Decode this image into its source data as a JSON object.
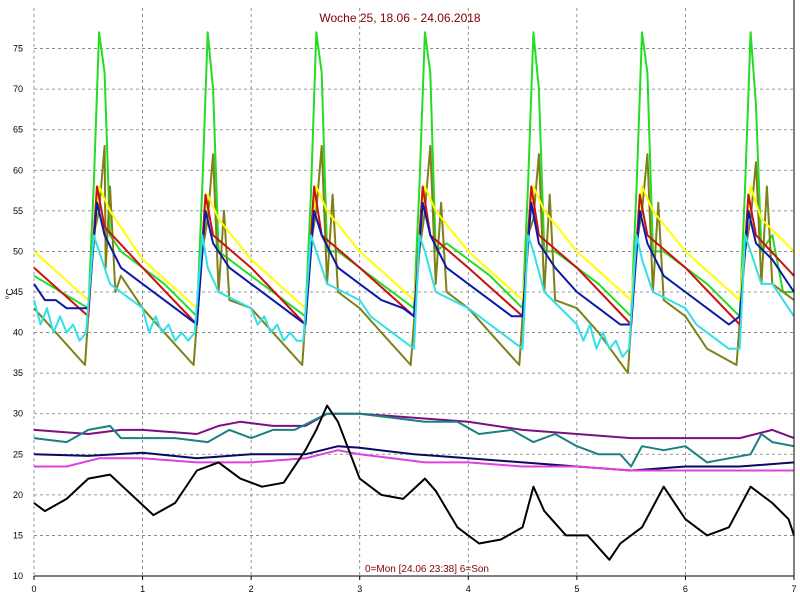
{
  "chart_data": {
    "type": "line",
    "title": "Woche 25, 18.06 - 24.06.2018",
    "ylabel": "°C",
    "footer": "0=Mon [24.06 23:38] 6=Son",
    "xlim": [
      0,
      7
    ],
    "ylim": [
      10,
      80
    ],
    "xticks": [
      "0",
      "1",
      "2",
      "3",
      "4",
      "5",
      "6",
      "7"
    ],
    "yticks": [
      "10",
      "15",
      "20",
      "25",
      "30",
      "35",
      "40",
      "45",
      "50",
      "55",
      "60",
      "65",
      "70",
      "75"
    ],
    "grid": true,
    "colors": {
      "green": "#22dd22",
      "olive": "#808018",
      "yellow": "#ffff00",
      "red": "#cc1111",
      "blue": "#0a1aa8",
      "cyan": "#33e0e8",
      "purple": "#7a1080",
      "teal": "#1a8080",
      "navy": "#0a0a60",
      "magenta": "#e040e0",
      "black": "#000000"
    },
    "series": [
      {
        "color": "green",
        "x": [
          0,
          0.5,
          0.55,
          0.6,
          0.65,
          0.7,
          0.8,
          1,
          1.2,
          1.5,
          1.55,
          1.6,
          1.65,
          1.7,
          1.8,
          2,
          2.2,
          2.5,
          2.55,
          2.6,
          2.65,
          2.7,
          2.8,
          3,
          3.2,
          3.5,
          3.55,
          3.6,
          3.65,
          3.7,
          3.8,
          4,
          4.2,
          4.5,
          4.55,
          4.6,
          4.65,
          4.7,
          4.8,
          5,
          5.2,
          5.5,
          5.55,
          5.6,
          5.65,
          5.7,
          5.8,
          6,
          6.2,
          6.5,
          6.55,
          6.6,
          6.65,
          6.7,
          6.8,
          6.9,
          7
        ],
        "y": [
          47,
          43,
          58,
          77,
          72,
          52,
          50,
          48,
          46,
          42,
          58,
          77,
          70,
          50,
          49,
          47,
          45,
          42,
          57,
          77,
          72,
          50,
          50,
          48,
          46,
          43,
          58,
          77,
          72,
          50,
          51,
          49,
          47,
          43,
          58,
          77,
          70,
          50,
          50,
          48,
          46,
          42,
          58,
          77,
          72,
          50,
          50,
          48,
          46,
          42,
          58,
          77,
          68,
          50,
          52,
          45,
          45
        ]
      },
      {
        "color": "olive",
        "x": [
          0,
          0.47,
          0.55,
          0.6,
          0.65,
          0.66,
          0.7,
          0.75,
          0.8,
          1,
          1.2,
          1.47,
          1.55,
          1.6,
          1.65,
          1.7,
          1.75,
          1.8,
          2,
          2.2,
          2.47,
          2.55,
          2.6,
          2.65,
          2.7,
          2.75,
          2.8,
          3,
          3.2,
          3.47,
          3.55,
          3.6,
          3.65,
          3.7,
          3.75,
          3.8,
          4,
          4.2,
          4.47,
          4.55,
          4.6,
          4.65,
          4.7,
          4.75,
          4.8,
          5,
          5.2,
          5.47,
          5.55,
          5.6,
          5.65,
          5.7,
          5.75,
          5.8,
          6,
          6.2,
          6.47,
          6.55,
          6.6,
          6.65,
          6.7,
          6.75,
          6.8,
          7
        ],
        "y": [
          43,
          36,
          52,
          55,
          63,
          48,
          58,
          45,
          47,
          43,
          40,
          36,
          50,
          54,
          62,
          45,
          55,
          44,
          43,
          40,
          36,
          51,
          55,
          63,
          46,
          57,
          45,
          43,
          40,
          36,
          50,
          55,
          63,
          46,
          56,
          45,
          43,
          40,
          36,
          52,
          54,
          62,
          45,
          57,
          44,
          43,
          40,
          35,
          51,
          55,
          62,
          45,
          56,
          44,
          42,
          38,
          36,
          50,
          54,
          61,
          46,
          58,
          46,
          44
        ]
      },
      {
        "color": "yellow",
        "x": [
          0,
          0.5,
          0.6,
          0.7,
          1,
          1.5,
          1.6,
          1.7,
          2,
          2.5,
          2.6,
          2.7,
          3,
          3.5,
          3.6,
          3.7,
          4,
          4.5,
          4.6,
          4.7,
          5,
          5.5,
          5.6,
          5.7,
          6,
          6.5,
          6.6,
          6.7,
          7
        ],
        "y": [
          50,
          44,
          58,
          55,
          49,
          43,
          57,
          54,
          49,
          43,
          58,
          55,
          50,
          44,
          58,
          55,
          50,
          44,
          58,
          55,
          50,
          44,
          58,
          55,
          50,
          44,
          58,
          54,
          50
        ]
      },
      {
        "color": "red",
        "x": [
          0,
          0.5,
          0.58,
          0.65,
          1,
          1.5,
          1.58,
          1.65,
          2,
          2.5,
          2.58,
          2.65,
          3,
          3.5,
          3.58,
          3.65,
          4,
          4.5,
          4.58,
          4.65,
          5,
          5.5,
          5.58,
          5.65,
          6,
          6.5,
          6.58,
          6.65,
          7
        ],
        "y": [
          48,
          42,
          58,
          53,
          48,
          41,
          57,
          52,
          48,
          41,
          58,
          52,
          48,
          42,
          58,
          52,
          48,
          42,
          58,
          52,
          48,
          41,
          57,
          52,
          48,
          41,
          57,
          52,
          47
        ]
      },
      {
        "color": "blue",
        "x": [
          0,
          0.1,
          0.2,
          0.3,
          0.4,
          0.5,
          0.58,
          0.65,
          0.8,
          1,
          1.2,
          1.4,
          1.5,
          1.58,
          1.65,
          1.8,
          2,
          2.2,
          2.4,
          2.5,
          2.58,
          2.65,
          2.8,
          3,
          3.2,
          3.4,
          3.5,
          3.58,
          3.65,
          3.8,
          4,
          4.2,
          4.4,
          4.5,
          4.58,
          4.65,
          4.8,
          5,
          5.2,
          5.4,
          5.5,
          5.58,
          5.65,
          5.8,
          6,
          6.2,
          6.4,
          6.5,
          6.58,
          6.65,
          6.8,
          7
        ],
        "y": [
          46,
          44,
          44,
          43,
          43,
          43,
          56,
          52,
          48,
          46,
          44,
          42,
          41,
          55,
          51,
          48,
          46,
          44,
          42,
          41,
          55,
          52,
          48,
          46,
          44,
          43,
          42,
          56,
          52,
          48,
          46,
          44,
          42,
          42,
          56,
          51,
          48,
          45,
          43,
          41,
          41,
          55,
          51,
          47,
          45,
          43,
          41,
          42,
          55,
          51,
          49,
          45
        ]
      },
      {
        "color": "cyan",
        "x": [
          0,
          0.06,
          0.12,
          0.18,
          0.24,
          0.3,
          0.36,
          0.42,
          0.48,
          0.55,
          0.6,
          0.7,
          1,
          1.06,
          1.12,
          1.18,
          1.24,
          1.3,
          1.36,
          1.42,
          1.48,
          1.55,
          1.6,
          1.7,
          2,
          2.06,
          2.12,
          2.18,
          2.24,
          2.3,
          2.36,
          2.42,
          2.48,
          2.55,
          2.6,
          2.7,
          3,
          3.1,
          3.2,
          3.3,
          3.4,
          3.5,
          3.55,
          3.6,
          3.7,
          4,
          4.1,
          4.2,
          4.3,
          4.4,
          4.5,
          4.55,
          4.6,
          4.7,
          5,
          5.06,
          5.12,
          5.18,
          5.24,
          5.3,
          5.36,
          5.42,
          5.48,
          5.55,
          5.6,
          5.7,
          6,
          6.1,
          6.2,
          6.3,
          6.4,
          6.5,
          6.55,
          6.6,
          6.7,
          6.8,
          7
        ],
        "y": [
          44,
          41,
          43,
          40,
          42,
          40,
          41,
          39,
          40,
          52,
          50,
          46,
          43,
          40,
          42,
          40,
          41,
          39,
          40,
          39,
          40,
          52,
          48,
          45,
          43,
          41,
          42,
          40,
          41,
          39,
          40,
          39,
          39,
          52,
          50,
          46,
          44,
          42,
          41,
          40,
          39,
          38,
          52,
          50,
          45,
          43,
          42,
          41,
          40,
          39,
          38,
          52,
          50,
          45,
          41,
          39,
          41,
          38,
          40,
          38,
          39,
          37,
          38,
          52,
          49,
          45,
          43,
          41,
          40,
          39,
          38,
          38,
          52,
          50,
          46,
          46,
          42
        ]
      },
      {
        "color": "purple",
        "x": [
          0,
          0.5,
          0.8,
          1,
          1.5,
          1.7,
          1.9,
          2.2,
          2.5,
          2.7,
          3,
          3.5,
          4,
          4.5,
          5,
          5.5,
          6,
          6.5,
          6.8,
          7
        ],
        "y": [
          28,
          27.5,
          28,
          28,
          27.5,
          28.5,
          29,
          28.5,
          28.5,
          30,
          30,
          29.5,
          29,
          28,
          27.5,
          27,
          27,
          27,
          28,
          27
        ]
      },
      {
        "color": "teal",
        "x": [
          0,
          0.3,
          0.5,
          0.7,
          0.8,
          1,
          1.3,
          1.6,
          1.8,
          2,
          2.2,
          2.4,
          2.7,
          3,
          3.3,
          3.6,
          3.9,
          4.1,
          4.4,
          4.6,
          4.8,
          5,
          5.2,
          5.4,
          5.5,
          5.6,
          5.8,
          6,
          6.2,
          6.4,
          6.6,
          6.7,
          6.8,
          7
        ],
        "y": [
          27,
          26.5,
          28,
          28.5,
          27,
          27,
          27,
          26.5,
          28,
          27,
          28,
          28,
          30,
          30,
          29.5,
          29,
          29,
          27.5,
          28,
          26.5,
          27.5,
          26,
          25,
          25,
          23.5,
          26,
          25.5,
          26,
          24,
          24.5,
          25,
          27.5,
          26.5,
          26
        ]
      },
      {
        "color": "navy",
        "x": [
          0,
          0.5,
          1,
          1.5,
          2,
          2.5,
          2.8,
          3,
          3.5,
          4,
          4.5,
          5,
          5.5,
          6,
          6.5,
          7
        ],
        "y": [
          25,
          24.8,
          25.2,
          24.5,
          25,
          25,
          26,
          25.8,
          25,
          24.5,
          24,
          23.5,
          23,
          23.5,
          23.5,
          24
        ]
      },
      {
        "color": "magenta",
        "x": [
          0,
          0.3,
          0.6,
          1,
          1.5,
          2,
          2.5,
          2.8,
          3,
          3.3,
          3.6,
          4,
          4.5,
          5,
          5.5,
          6,
          6.5,
          7
        ],
        "y": [
          23.5,
          23.5,
          24.5,
          24.5,
          24,
          24,
          24.5,
          25.5,
          25,
          24.5,
          24,
          24,
          23.5,
          23.5,
          23,
          23,
          23,
          23
        ]
      },
      {
        "color": "black",
        "x": [
          0,
          0.1,
          0.3,
          0.5,
          0.7,
          0.9,
          1.1,
          1.3,
          1.5,
          1.7,
          1.9,
          2.1,
          2.3,
          2.5,
          2.6,
          2.7,
          2.8,
          2.9,
          3,
          3.2,
          3.4,
          3.6,
          3.7,
          3.9,
          4.1,
          4.3,
          4.5,
          4.6,
          4.7,
          4.9,
          5.1,
          5.3,
          5.4,
          5.6,
          5.8,
          6,
          6.2,
          6.4,
          6.6,
          6.8,
          6.95,
          7
        ],
        "y": [
          19,
          18,
          19.5,
          22,
          22.5,
          20,
          17.5,
          19,
          23,
          24,
          22,
          21,
          21.5,
          25.5,
          28,
          31,
          29,
          25.5,
          22,
          20,
          19.5,
          22,
          20.5,
          16,
          14,
          14.5,
          16,
          21,
          18,
          15,
          15,
          12,
          14,
          16,
          21,
          17,
          15,
          16,
          21,
          19,
          17,
          15
        ]
      }
    ]
  }
}
